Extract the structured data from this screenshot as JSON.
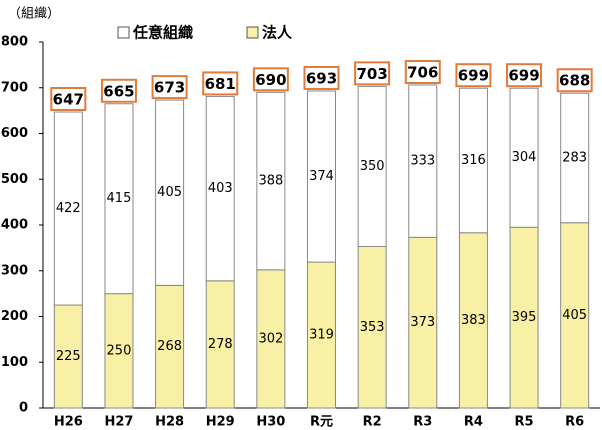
{
  "chart_data": {
    "type": "stacked_bar",
    "y_axis_label": "（組織）",
    "categories": [
      "H26",
      "H27",
      "H28",
      "H29",
      "H30",
      "R元",
      "R2",
      "R3",
      "R4",
      "R5",
      "R6"
    ],
    "series": [
      {
        "name": "法人",
        "color": "#f8f0a4",
        "values": [
          225,
          250,
          268,
          278,
          302,
          319,
          353,
          373,
          383,
          395,
          405
        ]
      },
      {
        "name": "任意組織",
        "color": "#ffffff",
        "values": [
          422,
          415,
          405,
          403,
          388,
          374,
          350,
          333,
          316,
          304,
          283
        ]
      }
    ],
    "totals": [
      647,
      665,
      673,
      681,
      690,
      693,
      703,
      706,
      699,
      699,
      688
    ],
    "ylim": [
      0,
      800
    ],
    "yticks": [
      0,
      100,
      200,
      300,
      400,
      500,
      600,
      700,
      800
    ]
  }
}
